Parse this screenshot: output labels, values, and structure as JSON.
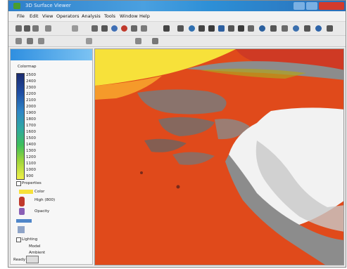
{
  "window": {
    "title": "3D Surface Viewer"
  },
  "menu": {
    "items": [
      "File",
      "Edit",
      "View",
      "Operators",
      "Analysis",
      "Tools",
      "Window",
      "Help"
    ]
  },
  "colors": {
    "titlebar": "#2e7fc9",
    "panel_header": "#2f8fe0",
    "terrain_red": "#e04a1b",
    "terrain_yellow": "#f7e13a",
    "terrain_gray": "#8c8c8c",
    "terrain_white": "#f2f2f2"
  },
  "toolbar": {
    "row1_icons": [
      "open-icon",
      "save-icon",
      "print-icon",
      "undo-icon",
      "select-icon",
      "zoom-icon",
      "rotate-icon",
      "sphere-icon",
      "palette-icon",
      "settings-icon",
      "play-icon",
      "plus-icon",
      "arrow-icon",
      "camera-icon",
      "grid-icon",
      "light-icon",
      "axis-icon",
      "mesh-icon",
      "filter-icon",
      "export-icon",
      "help-icon"
    ],
    "row2_icons": [
      "view-front-icon",
      "view-side-icon",
      "view-top-icon",
      "reset-view-icon",
      "fit-icon"
    ]
  },
  "sidebar": {
    "header": "",
    "section_colormap": "Colormap",
    "colorbar_labels": [
      "2500",
      "2400",
      "2300",
      "2200",
      "2100",
      "2000",
      "1900",
      "1800",
      "1700",
      "1600",
      "1500",
      "1400",
      "1300",
      "1200",
      "1100",
      "1000",
      "900"
    ],
    "section_properties": "Properties",
    "prop_lines": [
      "Color",
      "High (800)",
      "Opacity"
    ],
    "section_lighting": "Lighting",
    "light_lines": [
      "Model",
      "Ambient"
    ],
    "status": "Ready"
  }
}
